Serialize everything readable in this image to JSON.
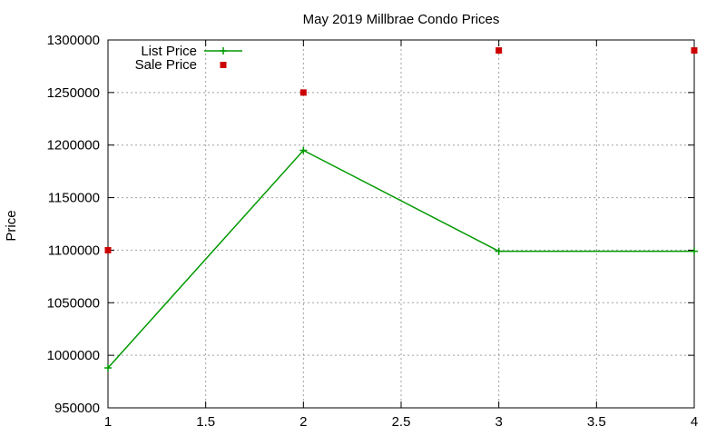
{
  "chart_data": {
    "type": "line",
    "title": "May 2019 Millbrae Condo Prices",
    "xlabel": "",
    "ylabel": "Price",
    "xlim": [
      1,
      4
    ],
    "ylim": [
      950000,
      1300000
    ],
    "x_ticks": [
      1,
      1.5,
      2,
      2.5,
      3,
      3.5,
      4
    ],
    "x_tick_labels": [
      "1",
      "1.5",
      "2",
      "2.5",
      "3",
      "3.5",
      "4"
    ],
    "y_ticks": [
      950000,
      1000000,
      1050000,
      1100000,
      1150000,
      1200000,
      1250000,
      1300000
    ],
    "y_tick_labels": [
      "950000",
      "1000000",
      "1050000",
      "1100000",
      "1150000",
      "1200000",
      "1250000",
      "1300000"
    ],
    "grid": true,
    "legend_position": "top-left",
    "series": [
      {
        "name": "List Price",
        "style": "linespoints",
        "color": "#009900",
        "x": [
          1,
          2,
          3,
          4
        ],
        "y": [
          988000,
          1195000,
          1099000,
          1099000
        ]
      },
      {
        "name": "Sale Price",
        "style": "points",
        "color": "#cc0000",
        "x": [
          1,
          2,
          3,
          4
        ],
        "y": [
          1100000,
          1250000,
          1290000,
          1290000
        ]
      }
    ]
  }
}
